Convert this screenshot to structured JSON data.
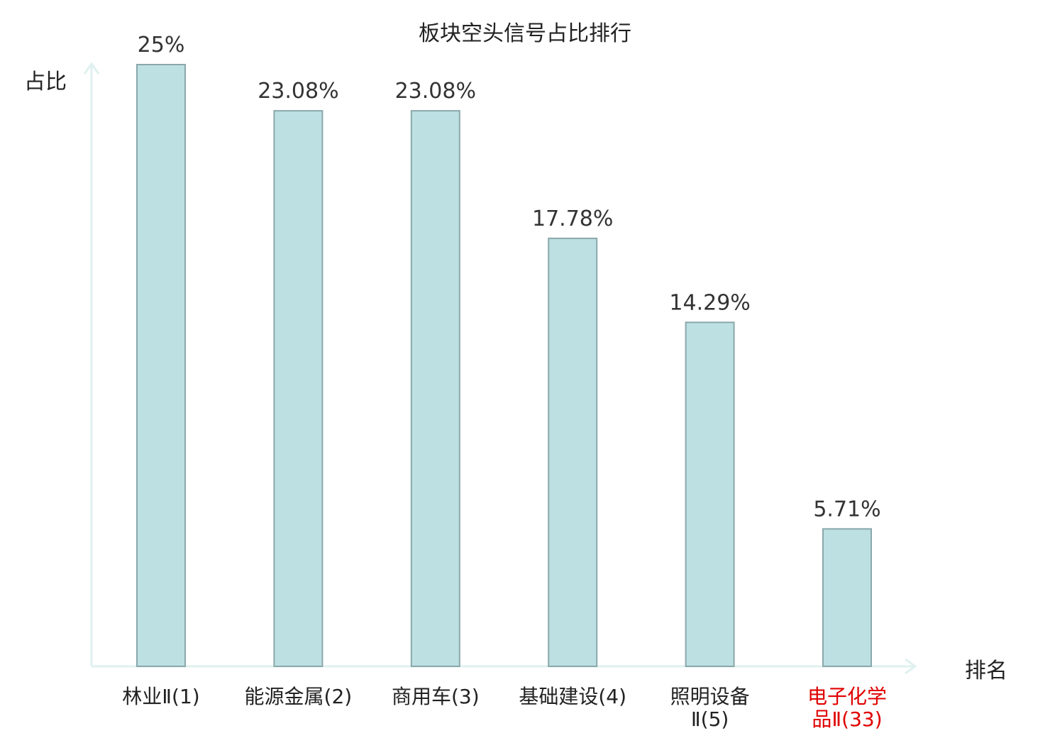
{
  "chart_data": {
    "type": "bar",
    "title": "板块空头信号占比排行",
    "ylabel": "占比",
    "xlabel": "排名",
    "categories": [
      "林业Ⅱ(1)",
      "能源金属(2)",
      "商用车(3)",
      "基础建设(4)",
      "照明设备Ⅱ(5)",
      "电子化学品Ⅱ(33)"
    ],
    "category_lines": [
      [
        "林业Ⅱ(1)"
      ],
      [
        "能源金属(2)"
      ],
      [
        "商用车(3)"
      ],
      [
        "基础建设(4)"
      ],
      [
        "照明设备",
        "Ⅱ(5)"
      ],
      [
        "电子化学",
        "品Ⅱ(33)"
      ]
    ],
    "values": [
      25,
      23.08,
      23.08,
      17.78,
      14.29,
      5.71
    ],
    "value_labels": [
      "25%",
      "23.08%",
      "23.08%",
      "17.78%",
      "14.29%",
      "5.71%"
    ],
    "ylim": [
      0,
      25
    ],
    "grid": false,
    "colors": {
      "bar_fill": "#bde0e3",
      "bar_stroke": "#8aa8ab",
      "axis": "#dff1ef",
      "highlight_label": "#e00000",
      "label": "#222222"
    },
    "highlight_index": 5
  }
}
